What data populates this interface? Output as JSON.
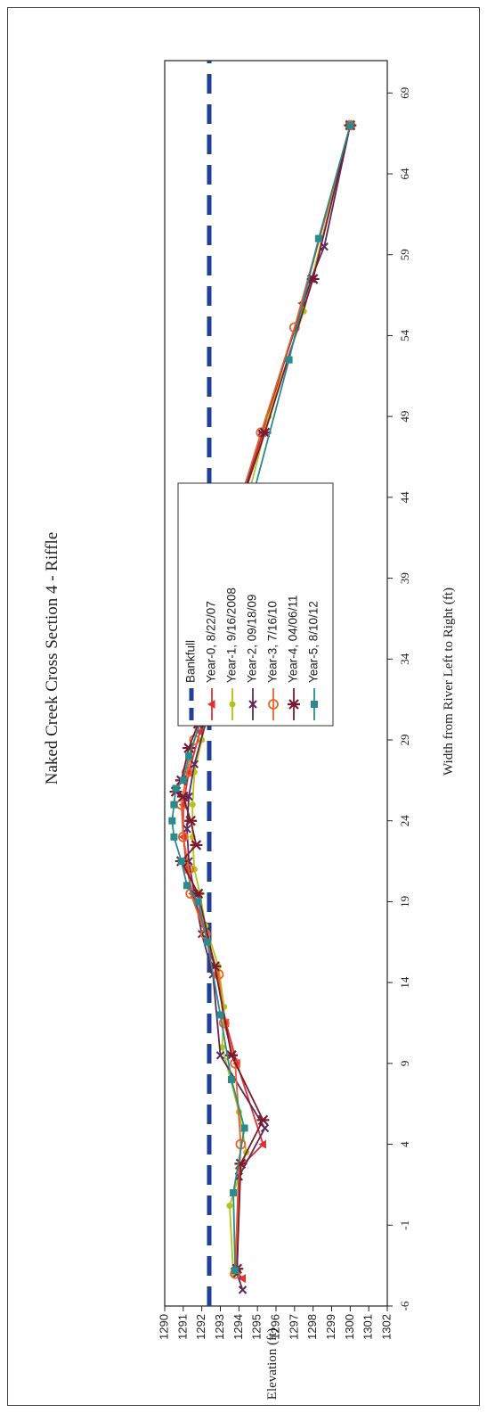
{
  "chart_data": {
    "type": "line",
    "orientation": "rotated-90-ccw",
    "title": "Naked Creek Cross Section 4 - Riffle",
    "xlabel": "Width from River Left to Right (ft)",
    "ylabel": "Elevation (ft)",
    "xlim": [
      -6,
      71
    ],
    "ylim": [
      1290,
      1302
    ],
    "x_ticks": [
      -6,
      -1,
      4,
      9,
      14,
      19,
      24,
      29,
      34,
      39,
      44,
      49,
      54,
      59,
      64,
      69
    ],
    "y_ticks": [
      1290,
      1291,
      1292,
      1293,
      1294,
      1295,
      1296,
      1297,
      1298,
      1299,
      1300,
      1301,
      1302
    ],
    "grid": false,
    "legend_position": "center",
    "series": [
      {
        "name": "Bankfull",
        "color": "#1f3f9a",
        "style": "dashed",
        "marker": "none",
        "points": [
          [
            -6,
            1292.4
          ],
          [
            71,
            1292.4
          ]
        ]
      },
      {
        "name": "Year-0, 8/22/07",
        "color": "#e0302f",
        "style": "solid",
        "marker": "triangle",
        "points": [
          [
            -4.3,
            1294.2
          ],
          [
            -3.8,
            1293.8
          ],
          [
            2.5,
            1294.0
          ],
          [
            4.0,
            1295.3
          ],
          [
            9.0,
            1293.9
          ],
          [
            11.5,
            1293.3
          ],
          [
            14.5,
            1292.8
          ],
          [
            17.5,
            1292.1
          ],
          [
            19.5,
            1291.5
          ],
          [
            21.0,
            1291.2
          ],
          [
            23.0,
            1291.0
          ],
          [
            25.0,
            1291.0
          ],
          [
            27.0,
            1291.3
          ],
          [
            29.5,
            1291.9
          ],
          [
            32.0,
            1292.6
          ],
          [
            36.0,
            1292.4
          ],
          [
            41.5,
            1293.5
          ],
          [
            48.0,
            1295.3
          ],
          [
            56.0,
            1297.4
          ],
          [
            67.0,
            1300.0
          ]
        ]
      },
      {
        "name": "Year-1, 9/16/2008",
        "color": "#b5c21c",
        "style": "solid",
        "marker": "circle",
        "points": [
          [
            -4.0,
            1293.7
          ],
          [
            0.2,
            1293.5
          ],
          [
            3.5,
            1294.4
          ],
          [
            6.0,
            1294.0
          ],
          [
            10.0,
            1293.1
          ],
          [
            12.5,
            1293.2
          ],
          [
            15.0,
            1292.9
          ],
          [
            17.5,
            1292.2
          ],
          [
            19.5,
            1291.9
          ],
          [
            21.0,
            1291.6
          ],
          [
            23.0,
            1291.5
          ],
          [
            25.0,
            1291.5
          ],
          [
            27.0,
            1291.6
          ],
          [
            29.0,
            1292.0
          ],
          [
            31.5,
            1292.4
          ],
          [
            34.5,
            1292.7
          ],
          [
            39.0,
            1293.4
          ],
          [
            44.5,
            1294.6
          ],
          [
            49.0,
            1295.6
          ],
          [
            55.5,
            1297.5
          ],
          [
            67.0,
            1300.0
          ]
        ]
      },
      {
        "name": "Year-2, 09/18/09",
        "color": "#5b2a5c",
        "style": "solid",
        "marker": "x",
        "points": [
          [
            -5.0,
            1294.2
          ],
          [
            -4.0,
            1293.9
          ],
          [
            2.0,
            1294.0
          ],
          [
            5.0,
            1295.4
          ],
          [
            9.5,
            1293.0
          ],
          [
            14.5,
            1292.6
          ],
          [
            17.0,
            1292.0
          ],
          [
            19.5,
            1291.6
          ],
          [
            21.5,
            1291.3
          ],
          [
            23.5,
            1291.2
          ],
          [
            25.5,
            1291.3
          ],
          [
            27.5,
            1291.6
          ],
          [
            30.0,
            1292.2
          ],
          [
            32.0,
            1292.7
          ],
          [
            40.5,
            1293.3
          ],
          [
            48.0,
            1295.2
          ],
          [
            57.5,
            1297.9
          ],
          [
            59.5,
            1298.6
          ],
          [
            67.0,
            1300.0
          ]
        ]
      },
      {
        "name": "Year-3, 7/16/10",
        "color": "#e8632b",
        "style": "solid",
        "marker": "circle-open",
        "points": [
          [
            -4.0,
            1293.8
          ],
          [
            4.0,
            1294.1
          ],
          [
            9.0,
            1293.8
          ],
          [
            11.5,
            1293.2
          ],
          [
            14.5,
            1292.9
          ],
          [
            17.0,
            1292.2
          ],
          [
            19.5,
            1291.4
          ],
          [
            21.0,
            1291.3
          ],
          [
            23.0,
            1291.0
          ],
          [
            25.0,
            1290.9
          ],
          [
            27.0,
            1291.2
          ],
          [
            29.0,
            1291.6
          ],
          [
            31.5,
            1292.3
          ],
          [
            41.0,
            1293.3
          ],
          [
            48.0,
            1295.2
          ],
          [
            54.5,
            1297.0
          ],
          [
            67.0,
            1300.0
          ]
        ]
      },
      {
        "name": "Year-4, 04/06/11",
        "color": "#7a1a30",
        "style": "solid",
        "marker": "asterisk",
        "points": [
          [
            -3.7,
            1293.9
          ],
          [
            2.8,
            1294.1
          ],
          [
            5.5,
            1295.3
          ],
          [
            9.5,
            1293.6
          ],
          [
            15.0,
            1292.7
          ],
          [
            19.5,
            1291.8
          ],
          [
            21.5,
            1290.9
          ],
          [
            22.5,
            1291.7
          ],
          [
            24.0,
            1291.4
          ],
          [
            25.5,
            1291.0
          ],
          [
            25.8,
            1290.6
          ],
          [
            26.5,
            1290.9
          ],
          [
            28.5,
            1291.3
          ],
          [
            30.0,
            1291.8
          ],
          [
            31.5,
            1292.6
          ],
          [
            40.5,
            1293.2
          ],
          [
            48.0,
            1295.4
          ],
          [
            57.5,
            1298.0
          ],
          [
            67.0,
            1300.0
          ]
        ]
      },
      {
        "name": "Year-5, 8/10/12",
        "color": "#2a8a8c",
        "style": "solid",
        "marker": "square",
        "points": [
          [
            -3.8,
            1293.8
          ],
          [
            1.0,
            1293.7
          ],
          [
            5.0,
            1294.3
          ],
          [
            8.0,
            1293.6
          ],
          [
            12.0,
            1293.0
          ],
          [
            16.5,
            1292.3
          ],
          [
            19.0,
            1291.8
          ],
          [
            20.0,
            1291.2
          ],
          [
            21.5,
            1290.9
          ],
          [
            23.0,
            1290.5
          ],
          [
            24.0,
            1290.4
          ],
          [
            25.0,
            1290.5
          ],
          [
            26.0,
            1290.6
          ],
          [
            26.5,
            1291.0
          ],
          [
            28.0,
            1291.3
          ],
          [
            31.0,
            1292.2
          ],
          [
            37.0,
            1293.1
          ],
          [
            43.0,
            1294.5
          ],
          [
            52.5,
            1296.7
          ],
          [
            60.0,
            1298.3
          ],
          [
            67.0,
            1300.0
          ]
        ]
      }
    ]
  }
}
